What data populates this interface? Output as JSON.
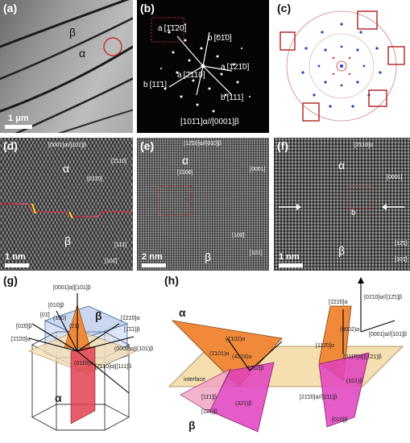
{
  "panels": {
    "a": {
      "label": "(a)",
      "beta": "β",
      "alpha": "α",
      "scale": "1 μm"
    },
    "b": {
      "label": "(b)",
      "a1": "a [1̄1̄20]",
      "b1": "b [01̄0]",
      "a2": "a [1̄21̄0]",
      "b2": "b [11̄1]",
      "a3": "a [2̄110]",
      "b3": "b [111]",
      "zone": "[101̄1]α//[0001]β"
    },
    "c": {
      "label": "(c)"
    },
    "d": {
      "label": "(d)",
      "zone": "[0001]α//[101]β",
      "alpha": "α",
      "beta": "β",
      "v1": "[2̄110]",
      "v2": "[011̄0]",
      "v3": "[11̄1]",
      "v4": "[101̄]",
      "scale": "1 nm"
    },
    "e": {
      "label": "(e)",
      "zone": "[12̄10]α//[010]β",
      "alpha": "α",
      "beta": "β",
      "v1": "[1̄100]",
      "v2": "[0001]",
      "v3": "[101̄]",
      "v4": "[101]",
      "scale": "2 nm"
    },
    "f": {
      "label": "(f)",
      "zone": "[2̄110]α",
      "alpha": "α",
      "beta": "β",
      "b": "b",
      "v1": "[0001]",
      "v2": "[12̄1]",
      "v3": "[101̄]",
      "scale": "1 nm"
    },
    "g": {
      "label": "(g)",
      "top": "[0001]α||[101]β",
      "beta": "β",
      "alpha": "α",
      "l010": "[010]β",
      "l1210": "[1̄21̄0]α",
      "l111": "[1̄1̄1]β",
      "l0002": "(0002)α||(101)β",
      "l1120": "[1̄1̄20]α",
      "l010b": "[01̄0]β",
      "l0110": "(011̄0)α",
      "l2110": "[2̄110]α||[111]β",
      "l100": "(100)",
      "l011": "[01̄]",
      "l21": "(21)"
    },
    "h": {
      "label": "(h)",
      "top": "[01̄10]α//[12̄1]β",
      "mid": "[0001]α//[101]β",
      "alpha": "α",
      "beta": "β",
      "interface": "interface",
      "l1210": "[1̄21̄0]α",
      "l0002": "(0002)α",
      "l1102": "(1̄102)α",
      "l1101": "(1̄101)α",
      "l4223": "(4̄223)α",
      "l012": "[0̄12]β",
      "l0110": "(011̄0)α||(1̄21)β",
      "l101": "(101)β",
      "l1120": "[112̄0]α",
      "l2110": "[21̄1̄0]α//[1̄11]β",
      "l010": "[010]β",
      "l111": "[11̄1]β",
      "l321": "(321)β",
      "l121": "[1̄2̄1]β"
    }
  },
  "colors": {
    "accent_red": "#c83030",
    "index_blue": "#1f3fc0",
    "orange_plane": "#f08a3a",
    "pink_plane": "#e040c0",
    "tan_plane": "#f5deb0",
    "blue_cell": "#9fb6e0"
  }
}
